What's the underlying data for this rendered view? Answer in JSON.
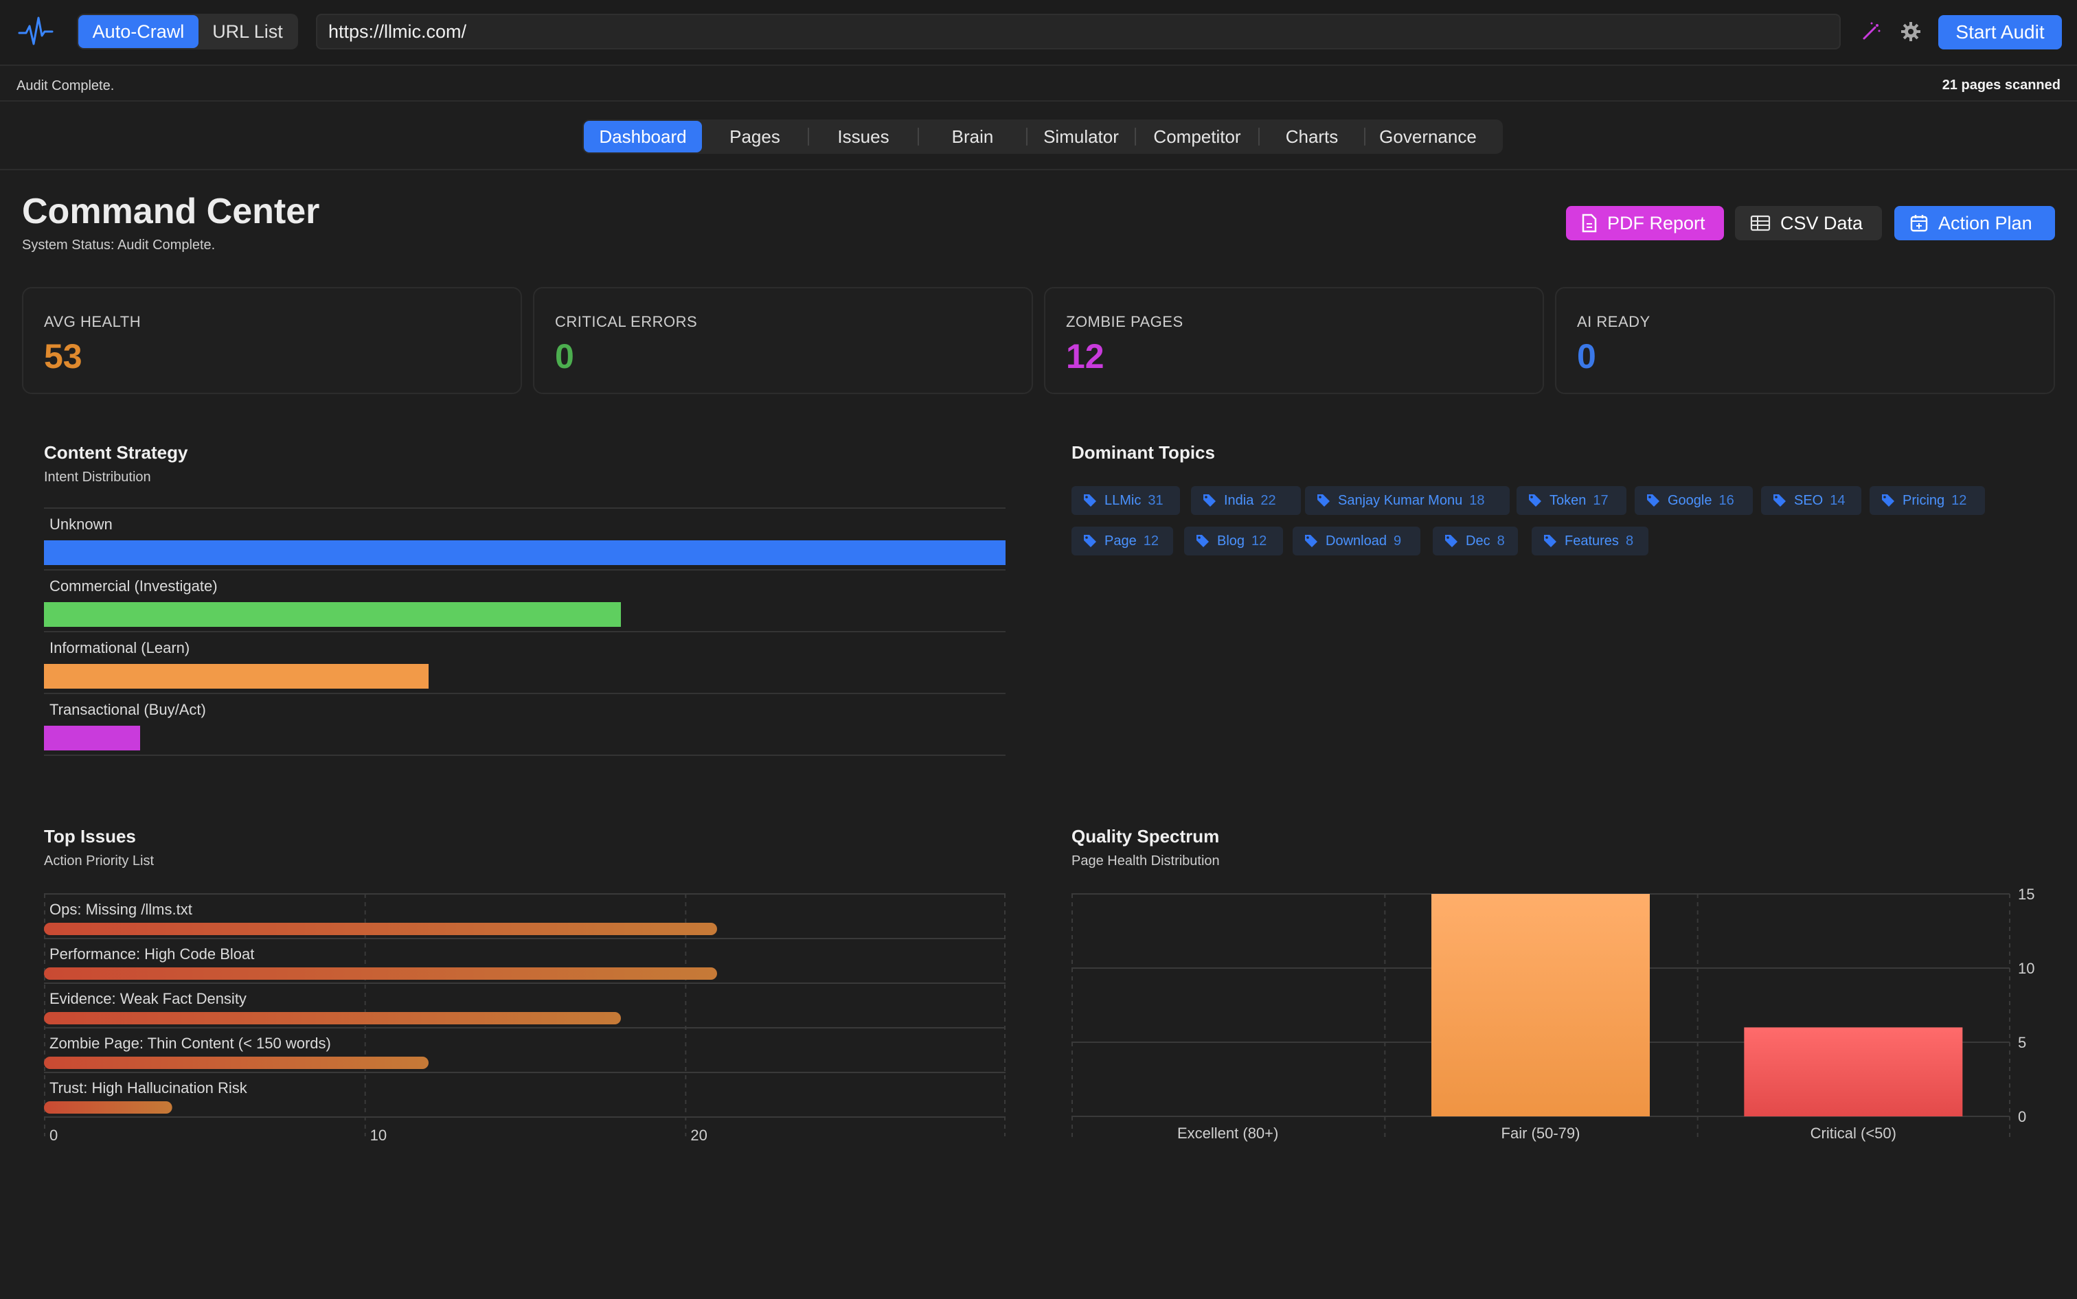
{
  "toolbar": {
    "modes": [
      "Auto-Crawl",
      "URL List"
    ],
    "active_mode": "Auto-Crawl",
    "url_value": "https://llmic.com/",
    "start_label": "Start Audit"
  },
  "status": {
    "left": "Audit Complete.",
    "right": "21 pages scanned"
  },
  "tabs": [
    "Dashboard",
    "Pages",
    "Issues",
    "Brain",
    "Simulator",
    "Competitor",
    "Charts",
    "Governance"
  ],
  "active_tab": "Dashboard",
  "header": {
    "title": "Command Center",
    "subtitle": "System Status: Audit Complete.",
    "actions": [
      {
        "label": "PDF Report",
        "color": "#d63be0"
      },
      {
        "label": "CSV Data",
        "color": "#2f2f2f"
      },
      {
        "label": "Action Plan",
        "color": "#3478f6"
      }
    ]
  },
  "stats": [
    {
      "label": "AVG HEALTH",
      "value": "53",
      "color": "#e08a2e"
    },
    {
      "label": "CRITICAL ERRORS",
      "value": "0",
      "color": "#4cae4f"
    },
    {
      "label": "ZOMBIE PAGES",
      "value": "12",
      "color": "#c93bdc"
    },
    {
      "label": "AI READY",
      "value": "0",
      "color": "#3a78e8"
    }
  ],
  "content_strategy": {
    "title": "Content Strategy",
    "subtitle": "Intent Distribution",
    "rows": [
      {
        "label": "Unknown",
        "fraction": 1.0,
        "color": "#3478f6"
      },
      {
        "label": "Commercial (Investigate)",
        "fraction": 0.6,
        "color": "#5fcf5f"
      },
      {
        "label": "Informational (Learn)",
        "fraction": 0.4,
        "color": "#f29a48"
      },
      {
        "label": "Transactional (Buy/Act)",
        "fraction": 0.1,
        "color": "#c93bdc"
      }
    ]
  },
  "dominant_topics": {
    "title": "Dominant Topics",
    "topics": [
      {
        "name": "LLMic",
        "count": "31"
      },
      {
        "name": "India",
        "count": "22"
      },
      {
        "name": "Sanjay Kumar Monu",
        "count": "18"
      },
      {
        "name": "Token",
        "count": "17"
      },
      {
        "name": "Google",
        "count": "16"
      },
      {
        "name": "SEO",
        "count": "14"
      },
      {
        "name": "Pricing",
        "count": "12"
      },
      {
        "name": "Page",
        "count": "12"
      },
      {
        "name": "Blog",
        "count": "12"
      },
      {
        "name": "Download",
        "count": "9"
      },
      {
        "name": "Dec",
        "count": "8"
      },
      {
        "name": "Features",
        "count": "8"
      }
    ]
  },
  "chart_data": [
    {
      "type": "bar",
      "orientation": "horizontal",
      "title": "Top Issues",
      "subtitle": "Action Priority List",
      "categories": [
        "Ops: Missing /llms.txt",
        "Performance: High Code Bloat",
        "Evidence: Weak Fact Density",
        "Zombie Page: Thin Content (< 150 words)",
        "Trust: High Hallucination Risk"
      ],
      "values": [
        21,
        21,
        18,
        12,
        4
      ],
      "xlim": [
        0,
        30
      ],
      "xticks": [
        "0",
        "10",
        "20"
      ],
      "grid": true
    },
    {
      "type": "bar",
      "title": "Quality Spectrum",
      "subtitle": "Page Health Distribution",
      "categories": [
        "Excellent (80+)",
        "Fair (50-79)",
        "Critical (<50)"
      ],
      "values": [
        0,
        15,
        6
      ],
      "colors": [
        "#f29a48",
        "#f29a48",
        "#ee5656"
      ],
      "ylim": [
        0,
        15
      ],
      "yticks": [
        "0",
        "5",
        "10",
        "15"
      ],
      "y_axis_side": "right",
      "grid": true
    }
  ]
}
